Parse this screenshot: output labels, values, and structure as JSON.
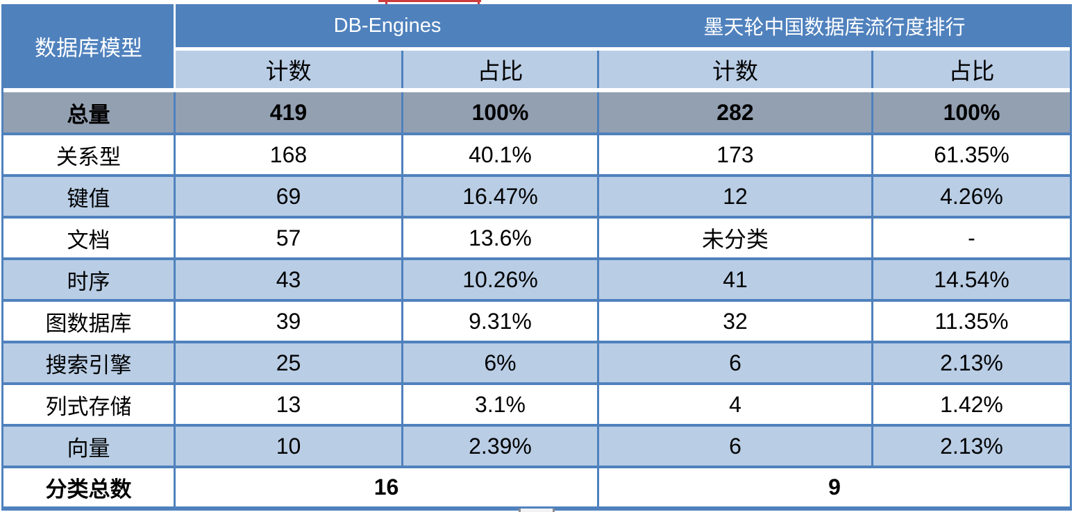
{
  "table": {
    "corner_header": "数据库模型",
    "group_headers": [
      {
        "label": "DB-Engines"
      },
      {
        "label": "墨天轮中国数据库流行度排行"
      }
    ],
    "sub_headers": [
      "计数",
      "占比",
      "计数",
      "占比"
    ],
    "total_row": {
      "label": "总量",
      "values": [
        "419",
        "100%",
        "282",
        "100%"
      ]
    },
    "rows": [
      {
        "label": "关系型",
        "values": [
          "168",
          "40.1%",
          "173",
          "61.35%"
        ]
      },
      {
        "label": "键值",
        "values": [
          "69",
          "16.47%",
          "12",
          "4.26%"
        ]
      },
      {
        "label": "文档",
        "values": [
          "57",
          "13.6%",
          "未分类",
          "-"
        ]
      },
      {
        "label": "时序",
        "values": [
          "43",
          "10.26%",
          "41",
          "14.54%"
        ]
      },
      {
        "label": "图数据库",
        "values": [
          "39",
          "9.31%",
          "32",
          "11.35%"
        ]
      },
      {
        "label": "搜索引擎",
        "values": [
          "25",
          "6%",
          "6",
          "2.13%"
        ]
      },
      {
        "label": "列式存储",
        "values": [
          "13",
          "3.1%",
          "4",
          "1.42%"
        ]
      },
      {
        "label": "向量",
        "values": [
          "10",
          "2.39%",
          "6",
          "2.13%"
        ]
      }
    ],
    "footer_row": {
      "label": "分类总数",
      "db_engines_total": "16",
      "modb_total": "9"
    }
  },
  "colors": {
    "header_blue": "#4f81bd",
    "light_blue": "#b9cde5",
    "total_row_gray": "#93a0b2",
    "border_blue": "#4f81bd",
    "red_artifact": "#cd3a3c",
    "scrollbar_gray": "#8f8f8f"
  }
}
